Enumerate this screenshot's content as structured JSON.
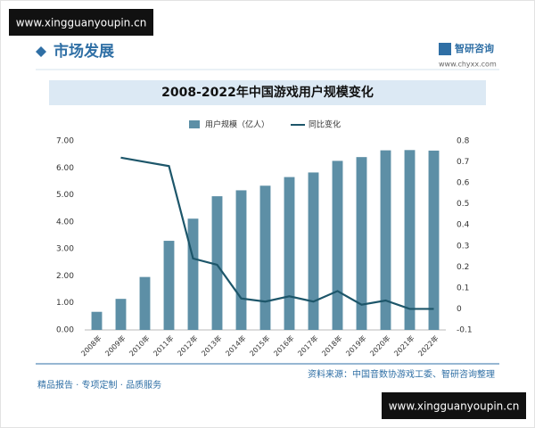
{
  "header": {
    "site": "www.xingguanyoupin.cn",
    "section": "市场发展",
    "brand": "智研咨询",
    "brand_url": "www.chyxx.com"
  },
  "chart_data": {
    "type": "combo",
    "title": "2008-2022年中国游戏用户规模变化",
    "categories": [
      "2008年",
      "2009年",
      "2010年",
      "2011年",
      "2012年",
      "2013年",
      "2014年",
      "2015年",
      "2016年",
      "2017年",
      "2018年",
      "2019年",
      "2020年",
      "2021年",
      "2022年"
    ],
    "series": [
      {
        "name": "用户规模（亿人）",
        "type": "bar",
        "color": "#5d8fa6",
        "values": [
          0.67,
          1.15,
          1.96,
          3.3,
          4.12,
          4.95,
          5.17,
          5.34,
          5.66,
          5.83,
          6.26,
          6.4,
          6.65,
          6.66,
          6.64
        ]
      },
      {
        "name": "同比变化",
        "type": "line",
        "axis": "y2",
        "color": "#1d566a",
        "values": [
          null,
          0.72,
          0.7,
          0.68,
          0.24,
          0.21,
          0.05,
          0.035,
          0.06,
          0.035,
          0.085,
          0.02,
          0.04,
          0.0,
          0.0
        ]
      }
    ],
    "ylim": [
      0,
      7
    ],
    "yticks": [
      {
        "value": 0,
        "label": "0.00"
      },
      {
        "value": 1,
        "label": "1.00"
      },
      {
        "value": 2,
        "label": "2.00"
      },
      {
        "value": 3,
        "label": "3.00"
      },
      {
        "value": 4,
        "label": "4.00"
      },
      {
        "value": 5,
        "label": "5.00"
      },
      {
        "value": 6,
        "label": "6.00"
      },
      {
        "value": 7,
        "label": "7.00"
      }
    ],
    "y2lim": [
      -0.1,
      0.8
    ],
    "y2ticks": [
      -0.1,
      0,
      0.1,
      0.2,
      0.3,
      0.4,
      0.5,
      0.6,
      0.7,
      0.8
    ],
    "grid": false
  },
  "footer": {
    "source": "资料来源：中国音数协游戏工委、智研咨询整理",
    "slogan": "精品报告 · 专项定制 · 品质服务",
    "site": "www.xingguanyoupin.cn"
  }
}
